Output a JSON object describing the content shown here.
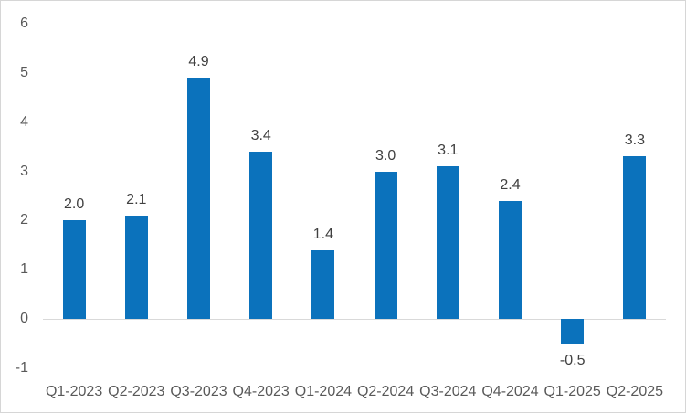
{
  "chart_data": {
    "type": "bar",
    "title": "",
    "xlabel": "",
    "ylabel": "",
    "categories": [
      "Q1-2023",
      "Q2-2023",
      "Q3-2023",
      "Q4-2023",
      "Q1-2024",
      "Q2-2024",
      "Q3-2024",
      "Q4-2024",
      "Q1-2025",
      "Q2-2025"
    ],
    "values": [
      2.0,
      2.1,
      4.9,
      3.4,
      1.4,
      3.0,
      3.1,
      2.4,
      -0.5,
      3.3
    ],
    "data_labels": [
      "2.0",
      "2.1",
      "4.9",
      "3.4",
      "1.4",
      "3.0",
      "3.1",
      "2.4",
      "-0.5",
      "3.3"
    ],
    "ylim": [
      -1,
      6
    ],
    "yticks": [
      6,
      5,
      4,
      3,
      2,
      1,
      0,
      -1
    ],
    "grid": false,
    "legend": false,
    "bar_color": "#0b72bc",
    "axis_label_color": "#595959",
    "data_label_color": "#404040",
    "zero_line_color": "#d9d9d9",
    "frame_border_color": "#d6d6d6"
  }
}
